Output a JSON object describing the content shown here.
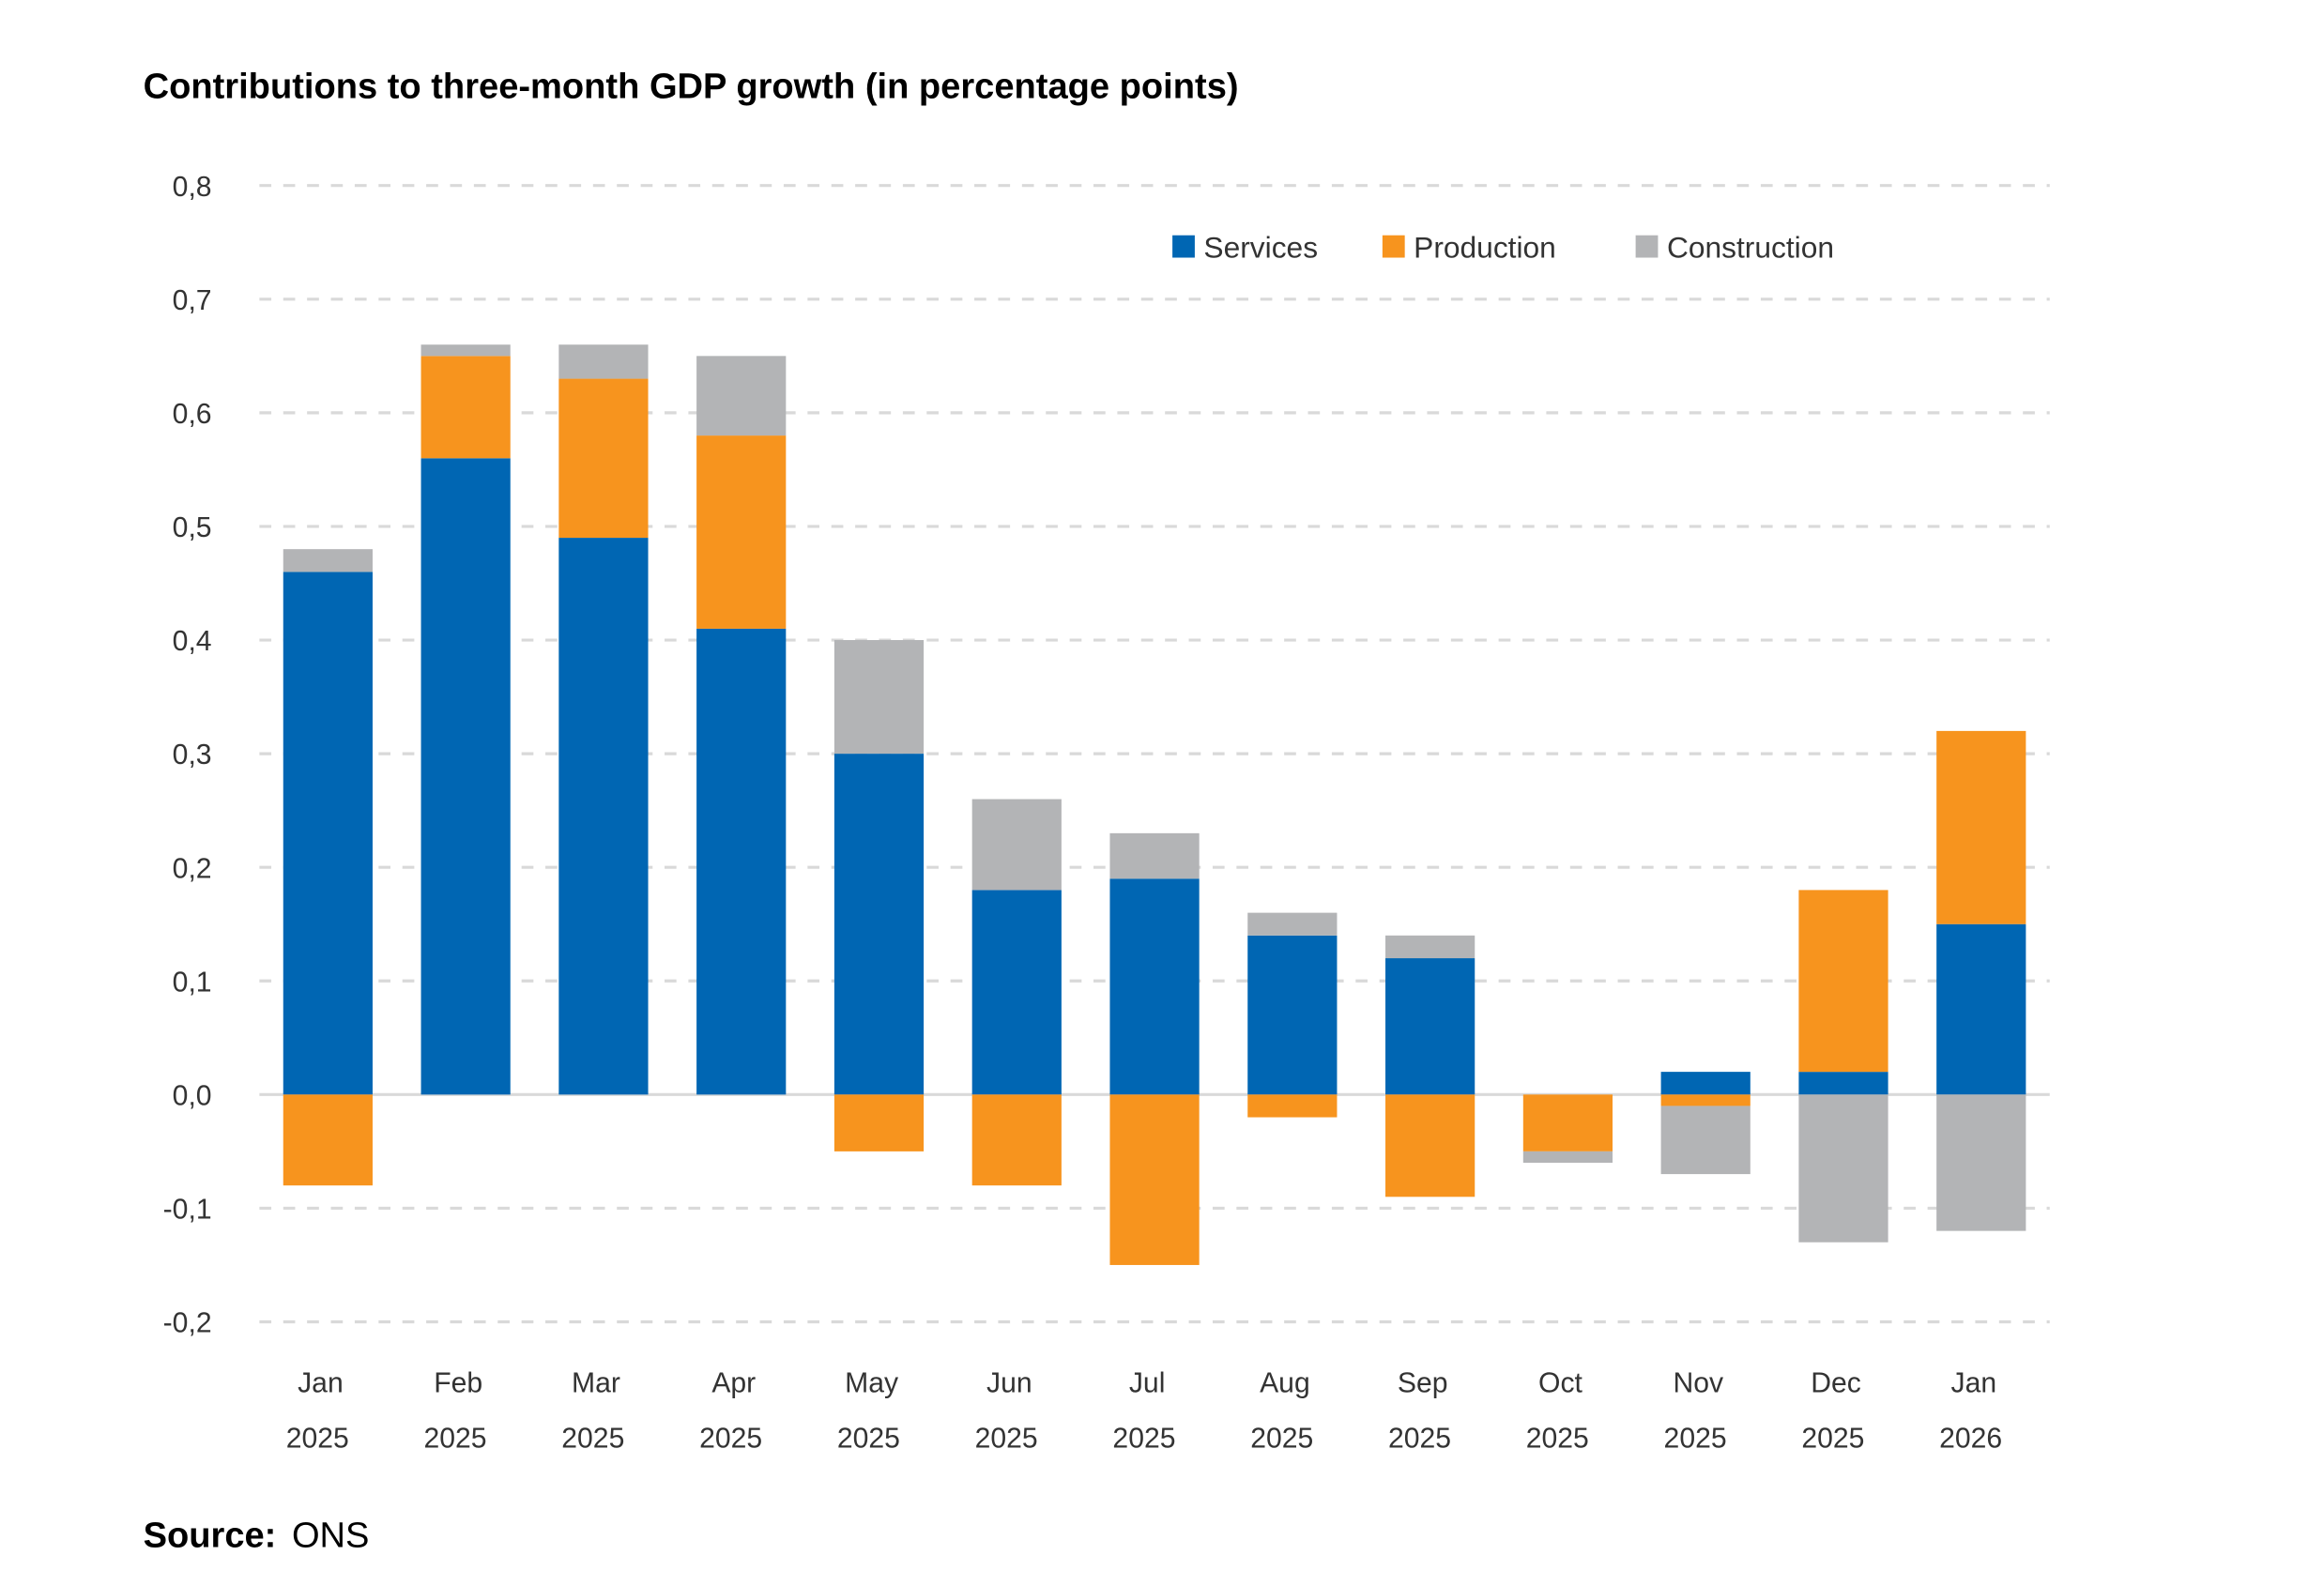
{
  "chart_data": {
    "type": "bar",
    "stacked": true,
    "title": "Contributions to three-month GDP growth (in percentage points)",
    "source_label": "Source:",
    "source_value": "ONS",
    "categories": [
      [
        "Jan",
        "2025"
      ],
      [
        "Feb",
        "2025"
      ],
      [
        "Mar",
        "2025"
      ],
      [
        "Apr",
        "2025"
      ],
      [
        "May",
        "2025"
      ],
      [
        "Jun",
        "2025"
      ],
      [
        "Jul",
        "2025"
      ],
      [
        "Aug",
        "2025"
      ],
      [
        "Sep",
        "2025"
      ],
      [
        "Oct",
        "2025"
      ],
      [
        "Nov",
        "2025"
      ],
      [
        "Dec",
        "2025"
      ],
      [
        "Jan",
        "2026"
      ]
    ],
    "series": [
      {
        "name": "Services",
        "color": "#0066B3",
        "values": [
          0.46,
          0.56,
          0.49,
          0.41,
          0.3,
          0.18,
          0.19,
          0.14,
          0.12,
          0.0,
          0.02,
          0.02,
          0.15
        ]
      },
      {
        "name": "Production",
        "color": "#F7941E",
        "values": [
          -0.08,
          0.09,
          0.14,
          0.17,
          -0.05,
          -0.08,
          -0.15,
          -0.02,
          -0.09,
          -0.05,
          -0.01,
          0.16,
          0.17
        ]
      },
      {
        "name": "Construction",
        "color": "#B3B4B6",
        "values": [
          0.02,
          0.01,
          0.03,
          0.07,
          0.1,
          0.08,
          0.04,
          0.02,
          0.02,
          -0.01,
          -0.06,
          -0.13,
          -0.12
        ]
      }
    ],
    "ylim": [
      -0.2,
      0.8
    ],
    "yticks": [
      "0,8",
      "0,7",
      "0,6",
      "0,5",
      "0,4",
      "0,3",
      "0,2",
      "0,1",
      "0,0",
      "-0,1",
      "-0,2"
    ],
    "ytick_values": [
      0.8,
      0.7,
      0.6,
      0.5,
      0.4,
      0.3,
      0.2,
      0.1,
      0.0,
      -0.1,
      -0.2
    ],
    "grid": true,
    "legend_position": "top-right",
    "xlabel": "",
    "ylabel": ""
  }
}
